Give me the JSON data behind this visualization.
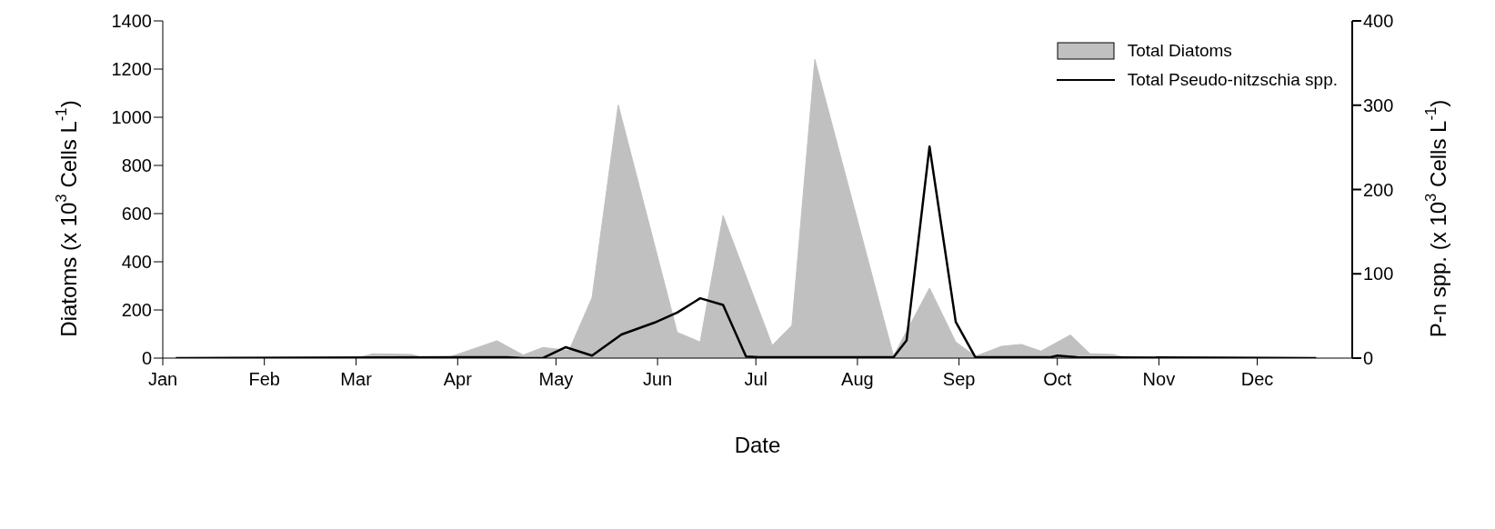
{
  "chart_data": {
    "type": "area",
    "xlabel": "Date",
    "ylabel": "Diatoms (x 10$^{3}$ Cells L$^{-1}$)",
    "y2label": "P-n spp. (x 10$^{3}$ Cells L$^{-1}$)",
    "xlim": [
      "--01-01",
      "--12-30"
    ],
    "xticks": [
      {
        "value": "--01-01",
        "label": "Jan"
      },
      {
        "value": "--02-01",
        "label": "Feb"
      },
      {
        "value": "--03-01",
        "label": "Mar"
      },
      {
        "value": "--04-01",
        "label": "Apr"
      },
      {
        "value": "--05-01",
        "label": "May"
      },
      {
        "value": "--06-01",
        "label": "Jun"
      },
      {
        "value": "--07-01",
        "label": "Jul"
      },
      {
        "value": "--08-01",
        "label": "Aug"
      },
      {
        "value": "--09-01",
        "label": "Sep"
      },
      {
        "value": "--10-01",
        "label": "Oct"
      },
      {
        "value": "--11-01",
        "label": "Nov"
      },
      {
        "value": "--12-01",
        "label": "Dec"
      }
    ],
    "ylim": [
      0,
      1400
    ],
    "yticks": [
      0,
      200,
      400,
      600,
      800,
      1000,
      1200,
      1400
    ],
    "y2lim": [
      0,
      400
    ],
    "y2ticks": [
      0,
      100,
      200,
      300,
      400
    ],
    "legend": "top right",
    "series": [
      {
        "name": "Total Diatoms",
        "color": "#c0c0c0",
        "x": [
          "--01-05",
          "--01-31",
          "--03-02",
          "--03-06",
          "--03-18",
          "--03-21",
          "--03-29",
          "--04-13",
          "--04-21",
          "--04-27",
          "--05-05",
          "--05-12",
          "--05-20",
          "--06-07",
          "--06-14",
          "--06-21",
          "--07-06",
          "--07-12",
          "--07-19",
          "--08-12",
          "--08-23",
          "--08-31",
          "--09-06",
          "--09-14",
          "--09-20",
          "--09-26",
          "--10-05",
          "--10-11",
          "--10-18",
          "--10-21",
          "--12-19"
        ],
        "values": [
          2,
          2,
          3,
          18,
          15,
          3,
          2,
          72,
          13,
          44,
          32,
          251,
          1051,
          107,
          67,
          592,
          53,
          136,
          1240,
          9,
          291,
          67,
          8,
          49,
          57,
          29,
          96,
          18,
          15,
          5,
          2
        ]
      },
      {
        "name": "Total Pseudo-nitzschia spp.",
        "type": "line",
        "axis": "y2",
        "color": "#000000",
        "x": [
          "--01-05",
          "--04-06",
          "--04-16",
          "--04-21",
          "--04-27",
          "--05-04",
          "--05-12",
          "--05-21",
          "--05-31",
          "--06-07",
          "--06-14",
          "--06-21",
          "--06-28",
          "--07-02",
          "--08-12",
          "--08-16",
          "--08-23",
          "--08-31",
          "--09-06",
          "--09-29",
          "--10-01",
          "--10-07",
          "--12-19"
        ],
        "values": [
          0,
          1,
          1,
          0,
          0,
          13,
          3,
          28,
          42,
          54,
          71,
          63,
          2,
          1,
          1,
          21,
          251,
          43,
          1,
          1,
          3,
          1,
          0
        ]
      }
    ]
  }
}
